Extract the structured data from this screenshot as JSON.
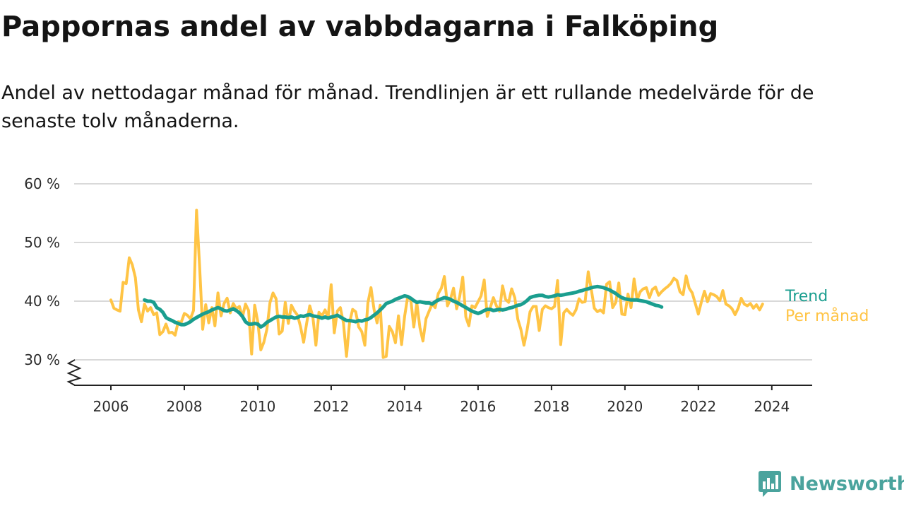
{
  "title": "Pappornas andel av vabbdagarna i Falköping",
  "subtitle": "Andel av nettodagar månad för månad. Trendlinjen är ett rullande medelvärde för de senaste tolv månaderna.",
  "brand": "Newsworthy",
  "colors": {
    "trend": "#1a9e8f",
    "monthly": "#ffc445",
    "grid": "#d9d9d9",
    "brand": "#4aa39d"
  },
  "chart_data": {
    "type": "line",
    "x_unit": "year",
    "xlim": [
      2005.0,
      2025.1
    ],
    "ylim": [
      26,
      61
    ],
    "y_broken_axis": true,
    "yticks": [
      {
        "value": 60,
        "label": "60 %"
      },
      {
        "value": 50,
        "label": "50 %"
      },
      {
        "value": 40,
        "label": "40 %"
      },
      {
        "value": 30,
        "label": "30 %"
      }
    ],
    "xticks": [
      {
        "value": 2006,
        "label": "2006"
      },
      {
        "value": 2008,
        "label": "2008"
      },
      {
        "value": 2010,
        "label": "2010"
      },
      {
        "value": 2012,
        "label": "2012"
      },
      {
        "value": 2014,
        "label": "2014"
      },
      {
        "value": 2016,
        "label": "2016"
      },
      {
        "value": 2018,
        "label": "2018"
      },
      {
        "value": 2020,
        "label": "2020"
      },
      {
        "value": 2022,
        "label": "2022"
      },
      {
        "value": 2024,
        "label": "2024"
      }
    ],
    "grid": true,
    "legend": "right, end of lines",
    "series": [
      {
        "name": "Per månad",
        "color": "#ffc445",
        "x_start": 2006.0,
        "x_step": 0.0833333,
        "values": [
          40.2,
          38.8,
          38.5,
          38.3,
          43.2,
          43.0,
          47.4,
          46.2,
          44.0,
          38.5,
          36.5,
          39.5,
          38.3,
          38.9,
          37.7,
          38.0,
          34.3,
          34.8,
          36.1,
          34.6,
          34.7,
          34.2,
          36.5,
          36.4,
          37.9,
          37.6,
          37.0,
          38.4,
          55.5,
          46.0,
          35.2,
          39.4,
          36.3,
          38.9,
          35.8,
          41.4,
          37.5,
          39.6,
          40.5,
          38.0,
          39.6,
          38.7,
          39.1,
          37.3,
          39.5,
          38.4,
          31.0,
          39.3,
          36.5,
          31.7,
          33.0,
          35.2,
          39.8,
          41.4,
          40.4,
          34.4,
          34.9,
          39.8,
          36.2,
          39.3,
          38.3,
          37.6,
          35.6,
          33.0,
          36.3,
          39.2,
          37.4,
          32.5,
          38.1,
          37.5,
          38.5,
          37.2,
          42.8,
          34.6,
          38.3,
          38.9,
          36.3,
          30.6,
          36.3,
          38.6,
          38.2,
          35.6,
          34.8,
          32.5,
          39.7,
          42.3,
          38.6,
          36.3,
          39.3,
          30.4,
          30.6,
          35.7,
          34.8,
          32.9,
          37.5,
          32.6,
          37.4,
          40.7,
          40.3,
          35.6,
          39.7,
          35.5,
          33.2,
          37.0,
          38.3,
          39.5,
          38.9,
          41.3,
          42.2,
          44.2,
          39.2,
          40.4,
          42.2,
          38.7,
          40.8,
          44.1,
          37.3,
          35.8,
          39.2,
          38.9,
          39.9,
          40.9,
          43.6,
          37.4,
          38.9,
          40.6,
          39.2,
          38.3,
          42.6,
          40.3,
          39.8,
          42.1,
          40.6,
          36.9,
          35.2,
          32.5,
          35.0,
          38.2,
          39.1,
          39.1,
          35.0,
          38.6,
          39.2,
          38.9,
          38.7,
          39.1,
          43.5,
          32.6,
          38.0,
          38.6,
          38.0,
          37.6,
          38.5,
          40.4,
          39.8,
          39.9,
          45.0,
          42.0,
          38.8,
          38.2,
          38.5,
          38.0,
          42.9,
          43.3,
          38.9,
          39.8,
          43.1,
          37.8,
          37.7,
          41.2,
          38.9,
          43.8,
          40.2,
          41.6,
          42.1,
          42.3,
          40.6,
          42.0,
          42.4,
          41.0,
          41.6,
          42.1,
          42.5,
          43.0,
          43.9,
          43.5,
          41.6,
          41.1,
          44.3,
          42.2,
          41.4,
          39.6,
          37.8,
          39.9,
          41.7,
          39.9,
          41.3,
          41.1,
          40.8,
          40.1,
          41.8,
          39.5,
          39.2,
          38.7,
          37.7,
          38.8,
          40.5,
          39.5,
          39.2,
          39.6,
          38.8,
          39.4,
          38.5,
          39.5
        ]
      },
      {
        "name": "Trend",
        "color": "#1a9e8f",
        "x_start": 2006.9167,
        "x_step": 0.0833333,
        "values": [
          40.2,
          40.0,
          40.0,
          39.8,
          38.9,
          38.6,
          38.1,
          37.2,
          36.9,
          36.7,
          36.4,
          36.2,
          36.0,
          36.0,
          36.2,
          36.5,
          36.9,
          37.2,
          37.5,
          37.8,
          38.0,
          38.2,
          38.5,
          38.7,
          38.9,
          38.7,
          38.4,
          38.3,
          38.5,
          38.7,
          38.4,
          38.0,
          37.4,
          36.5,
          36.1,
          36.1,
          36.2,
          36.1,
          35.6,
          35.9,
          36.4,
          36.7,
          37.0,
          37.3,
          37.4,
          37.3,
          37.3,
          37.2,
          37.3,
          37.1,
          37.2,
          37.5,
          37.4,
          37.6,
          37.7,
          37.5,
          37.4,
          37.3,
          37.1,
          37.3,
          37.1,
          37.3,
          37.4,
          37.6,
          37.3,
          37.0,
          36.7,
          36.7,
          36.6,
          36.5,
          36.7,
          36.6,
          36.8,
          36.9,
          37.2,
          37.6,
          38.0,
          38.5,
          39.0,
          39.6,
          39.8,
          40.0,
          40.3,
          40.5,
          40.7,
          40.9,
          40.8,
          40.5,
          40.1,
          39.8,
          39.9,
          39.8,
          39.7,
          39.7,
          39.5,
          39.9,
          40.2,
          40.4,
          40.6,
          40.5,
          40.3,
          40.0,
          39.8,
          39.5,
          39.2,
          38.9,
          38.6,
          38.3,
          38.1,
          37.9,
          38.1,
          38.4,
          38.6,
          38.6,
          38.4,
          38.5,
          38.6,
          38.5,
          38.6,
          38.8,
          38.9,
          39.1,
          39.3,
          39.4,
          39.7,
          40.1,
          40.6,
          40.8,
          40.9,
          41.0,
          41.0,
          40.8,
          40.7,
          40.8,
          40.9,
          41.1,
          41.0,
          41.1,
          41.2,
          41.3,
          41.4,
          41.5,
          41.7,
          41.8,
          42.0,
          42.1,
          42.3,
          42.4,
          42.5,
          42.4,
          42.3,
          42.1,
          41.9,
          41.6,
          41.3,
          40.9,
          40.6,
          40.4,
          40.3,
          40.2,
          40.2,
          40.2,
          40.1,
          40.0,
          39.9,
          39.7,
          39.5,
          39.3,
          39.2,
          39.0
        ]
      }
    ]
  }
}
